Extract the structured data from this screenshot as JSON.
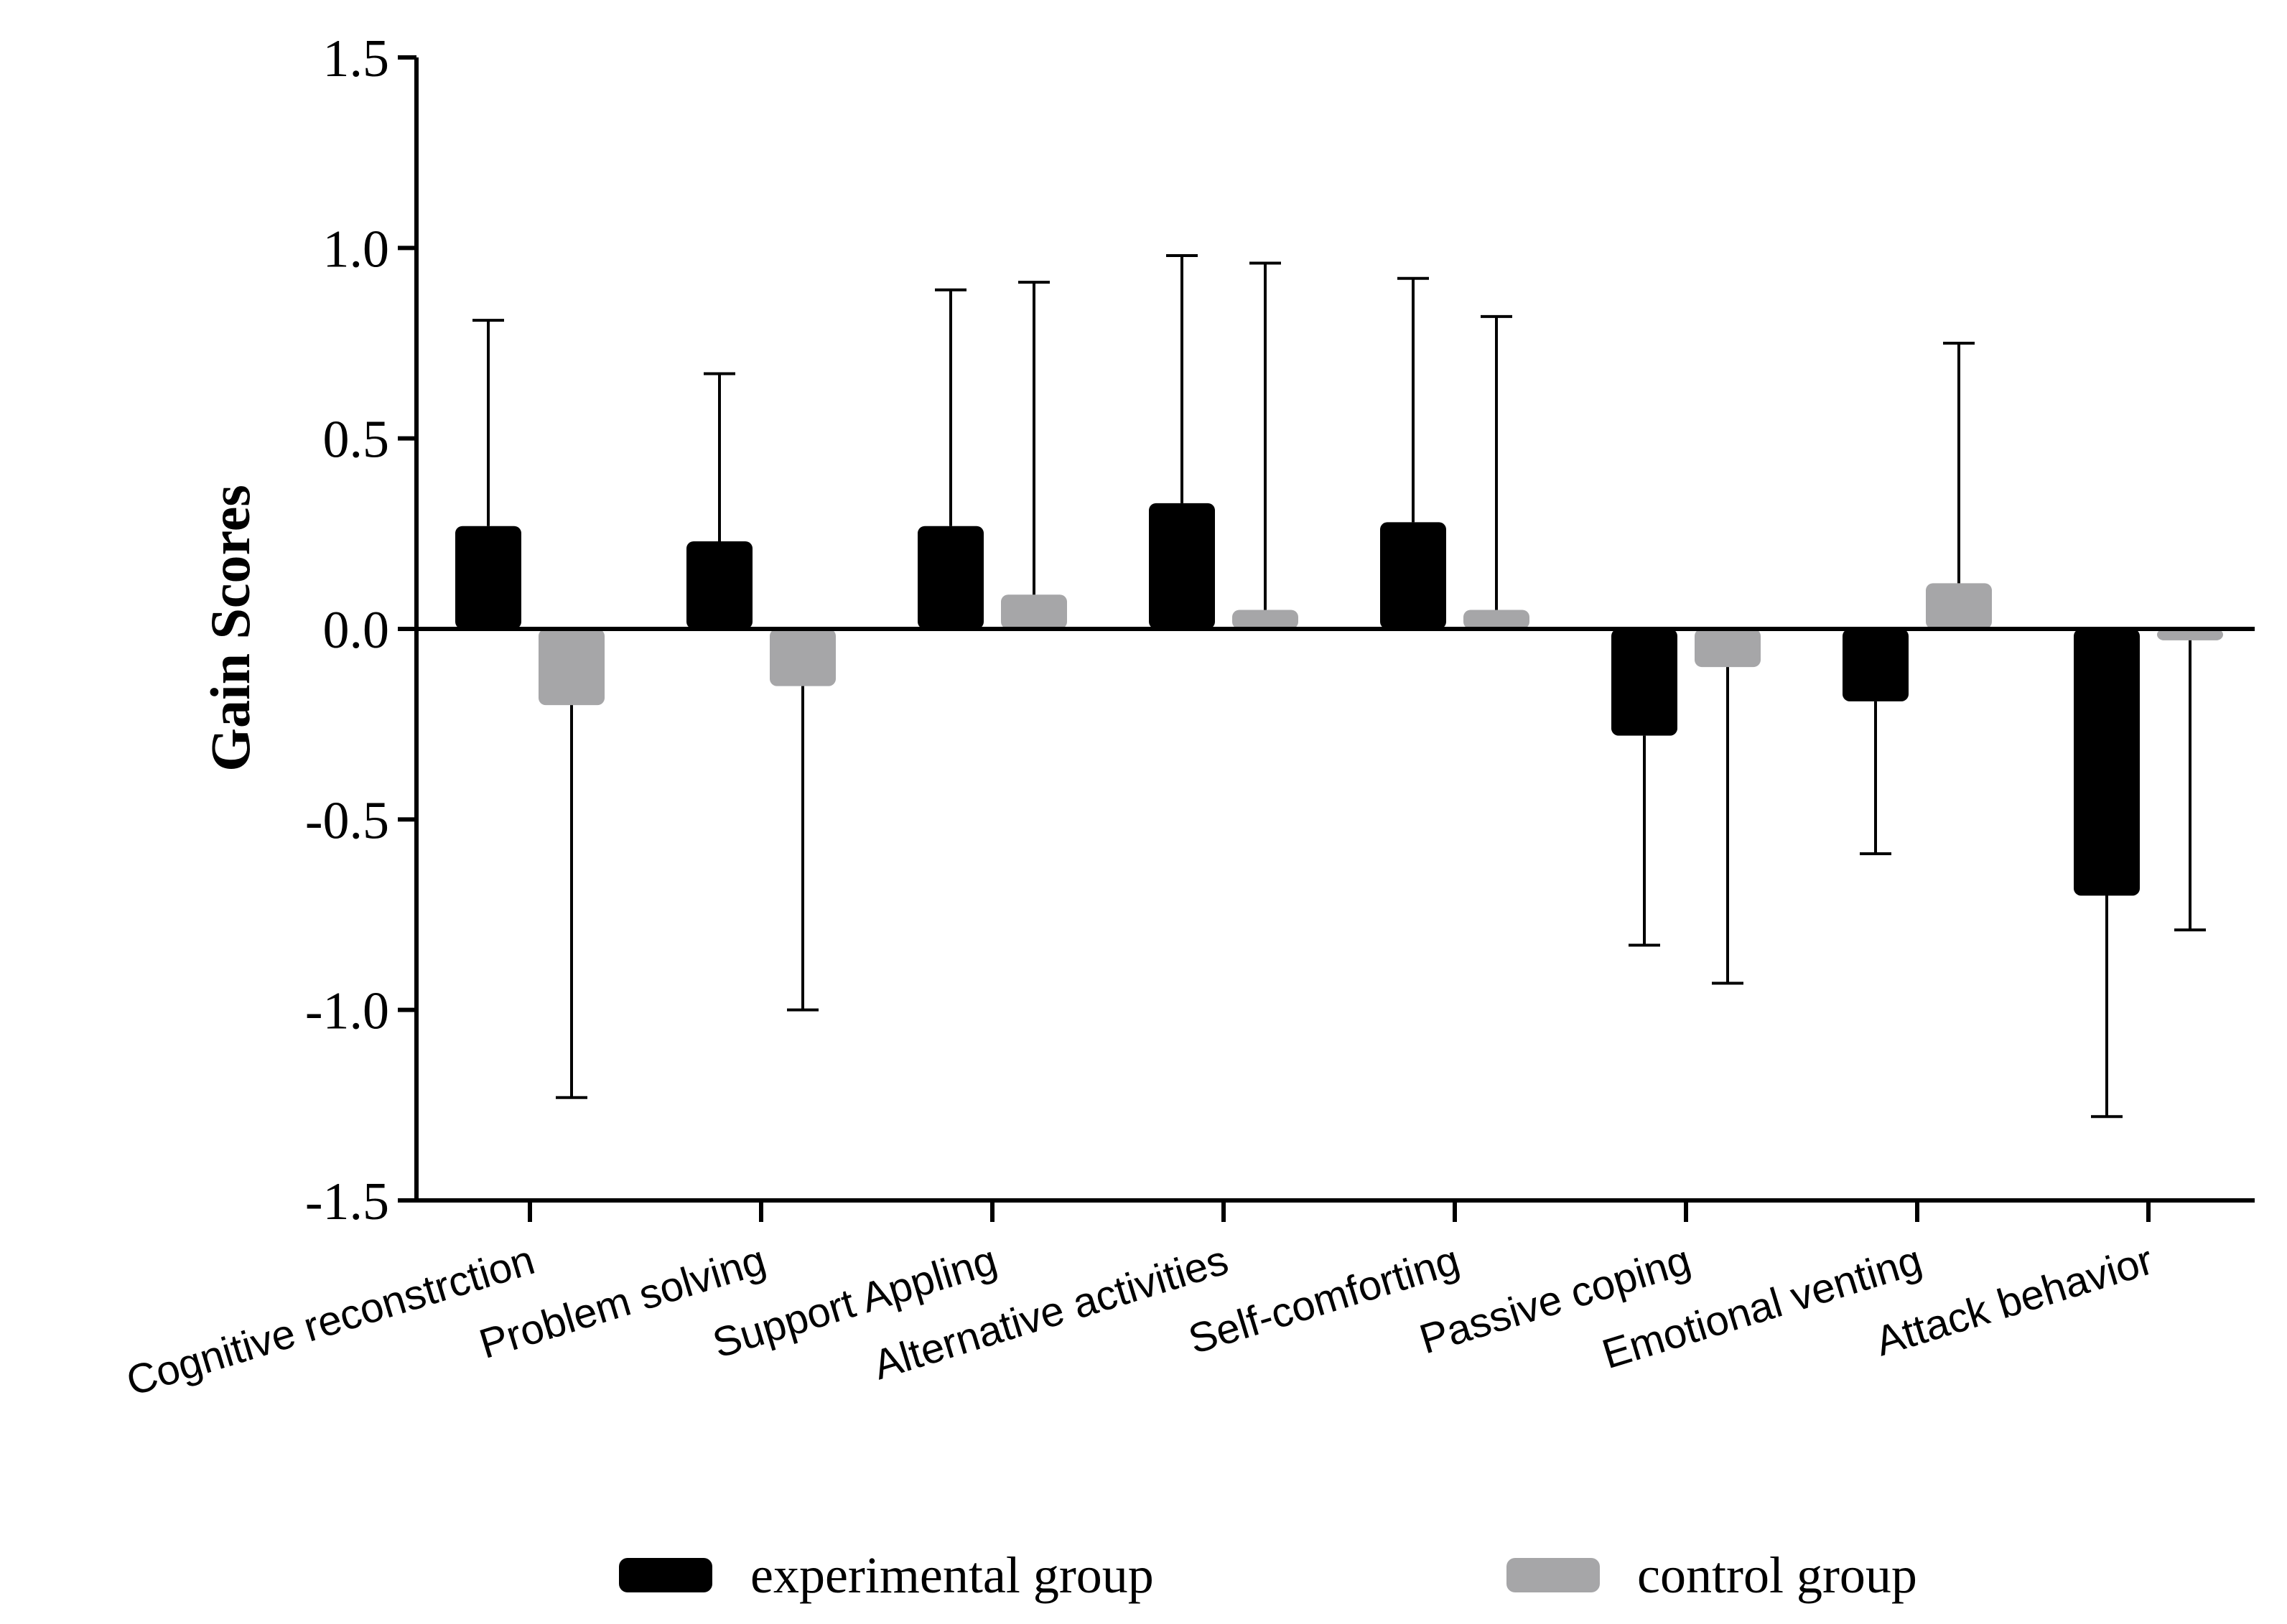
{
  "chart_data": {
    "type": "bar",
    "title": "",
    "xlabel": "",
    "ylabel": "Gain Scores",
    "ylim": [
      -1.5,
      1.5
    ],
    "yticks": [
      1.5,
      1.0,
      0.5,
      0.0,
      -0.5,
      -1.0,
      -1.5
    ],
    "ytick_labels": [
      "1.5",
      "1.0",
      "0.5",
      "0.0",
      "-0.5",
      "-1.0",
      "-1.5"
    ],
    "grid": false,
    "legend_position": "bottom",
    "categories": [
      "Cognitive reconstrction",
      "Problem solving",
      "Support Appling",
      "Alternative activities",
      "Self-comforting",
      "Passive coping",
      "Emotional venting",
      "Attack behavior"
    ],
    "series": [
      {
        "name": "experimental group",
        "color": "#000000",
        "values": [
          0.27,
          0.23,
          0.27,
          0.33,
          0.28,
          -0.28,
          -0.19,
          -0.7
        ],
        "error": [
          0.54,
          0.44,
          0.62,
          0.65,
          0.64,
          0.55,
          0.4,
          0.58
        ]
      },
      {
        "name": "control group",
        "color": "#a6a6a8",
        "values": [
          -0.2,
          -0.15,
          0.09,
          0.05,
          0.05,
          -0.1,
          0.12,
          -0.03
        ],
        "error": [
          1.03,
          0.85,
          0.82,
          0.91,
          0.77,
          0.83,
          0.63,
          0.76
        ]
      }
    ]
  }
}
